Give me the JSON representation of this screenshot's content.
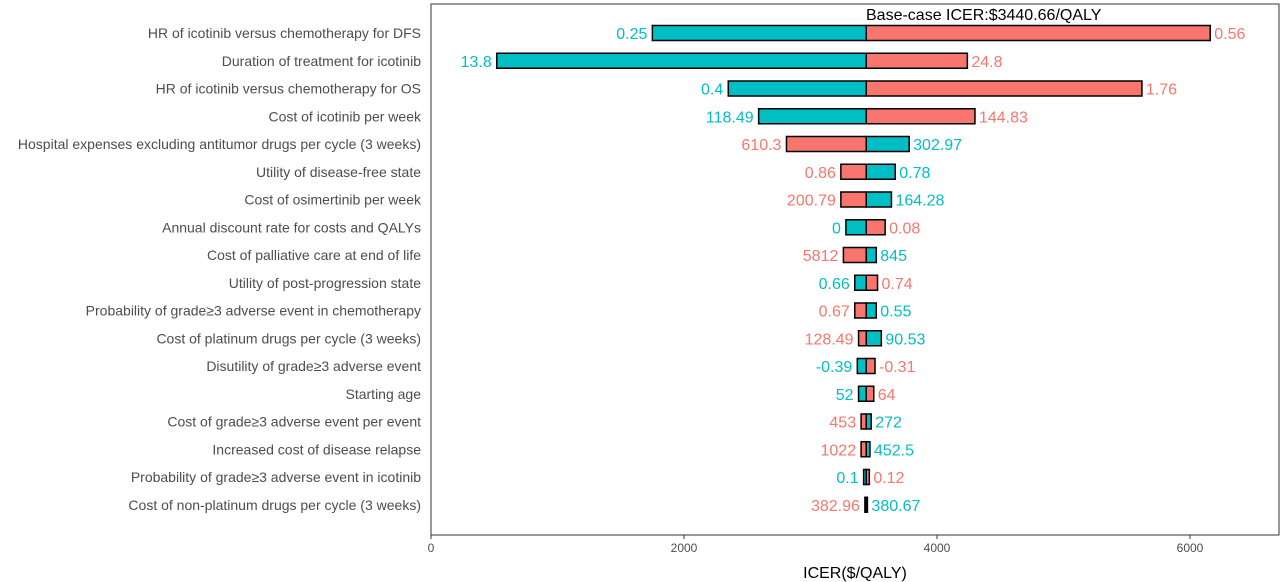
{
  "chart_data": {
    "type": "bar",
    "subtype": "tornado",
    "title": "",
    "base_case_label": "Base-case ICER:$3440.66/QALY",
    "base_case_value": 3440.66,
    "xlabel": "ICER($/QALY)",
    "ylabel": "",
    "xlim": [
      0,
      6700
    ],
    "x_ticks": [
      0,
      2000,
      4000,
      6000
    ],
    "grid": false,
    "colors": {
      "teal": "#00BFC4",
      "salmon": "#F8766D",
      "outline": "#000000"
    },
    "parameters": [
      {
        "label": "HR of icotinib versus chemotherapy for DFS",
        "teal_value": 1750,
        "teal_text": "0.25",
        "salmon_value": 6160,
        "salmon_text": "0.56"
      },
      {
        "label": "Duration of treatment for icotinib",
        "teal_value": 520,
        "teal_text": "13.8",
        "salmon_value": 4240,
        "salmon_text": "24.8"
      },
      {
        "label": "HR of icotinib versus chemotherapy for OS",
        "teal_value": 2350,
        "teal_text": "0.4",
        "salmon_value": 5620,
        "salmon_text": "1.76"
      },
      {
        "label": "Cost of icotinib per week",
        "teal_value": 2590,
        "teal_text": "118.49",
        "salmon_value": 4300,
        "salmon_text": "144.83"
      },
      {
        "label": "Hospital expenses excluding antitumor drugs per cycle (3 weeks)",
        "teal_value": 3780,
        "teal_text": "302.97",
        "salmon_value": 2810,
        "salmon_text": "610.3"
      },
      {
        "label": "Utility of disease-free state",
        "teal_value": 3670,
        "teal_text": "0.78",
        "salmon_value": 3240,
        "salmon_text": "0.86"
      },
      {
        "label": "Cost of osimertinib per week",
        "teal_value": 3640,
        "teal_text": "164.28",
        "salmon_value": 3240,
        "salmon_text": "200.79"
      },
      {
        "label": "Annual discount rate for costs and QALYs",
        "teal_value": 3280,
        "teal_text": "0",
        "salmon_value": 3590,
        "salmon_text": "0.08"
      },
      {
        "label": "Cost of palliative care at end of life",
        "teal_value": 3520,
        "teal_text": "845",
        "salmon_value": 3260,
        "salmon_text": "5812"
      },
      {
        "label": "Utility of post-progression state",
        "teal_value": 3350,
        "teal_text": "0.66",
        "salmon_value": 3530,
        "salmon_text": "0.74"
      },
      {
        "label": "Probability of grade≥3 adverse event in chemotherapy",
        "teal_value": 3520,
        "teal_text": "0.55",
        "salmon_value": 3350,
        "salmon_text": "0.67"
      },
      {
        "label": "Cost of platinum drugs per cycle (3 weeks)",
        "teal_value": 3560,
        "teal_text": "90.53",
        "salmon_value": 3380,
        "salmon_text": "128.49"
      },
      {
        "label": "Disutility of grade≥3 adverse event",
        "teal_value": 3370,
        "teal_text": "-0.39",
        "salmon_value": 3510,
        "salmon_text": "-0.31"
      },
      {
        "label": "Starting age",
        "teal_value": 3380,
        "teal_text": "52",
        "salmon_value": 3500,
        "salmon_text": "64"
      },
      {
        "label": "Cost of grade≥3 adverse event per event",
        "teal_value": 3480,
        "teal_text": "272",
        "salmon_value": 3400,
        "salmon_text": "453"
      },
      {
        "label": "Increased cost of disease relapse",
        "teal_value": 3470,
        "teal_text": "452.5",
        "salmon_value": 3400,
        "salmon_text": "1022"
      },
      {
        "label": "Probability of grade≥3 adverse event in icotinib",
        "teal_value": 3420,
        "teal_text": "0.1",
        "salmon_value": 3465,
        "salmon_text": "0.12"
      },
      {
        "label": "Cost of non-platinum drugs per cycle (3 weeks)",
        "teal_value": 3450,
        "teal_text": "380.67",
        "salmon_value": 3430,
        "salmon_text": "382.96"
      }
    ]
  }
}
